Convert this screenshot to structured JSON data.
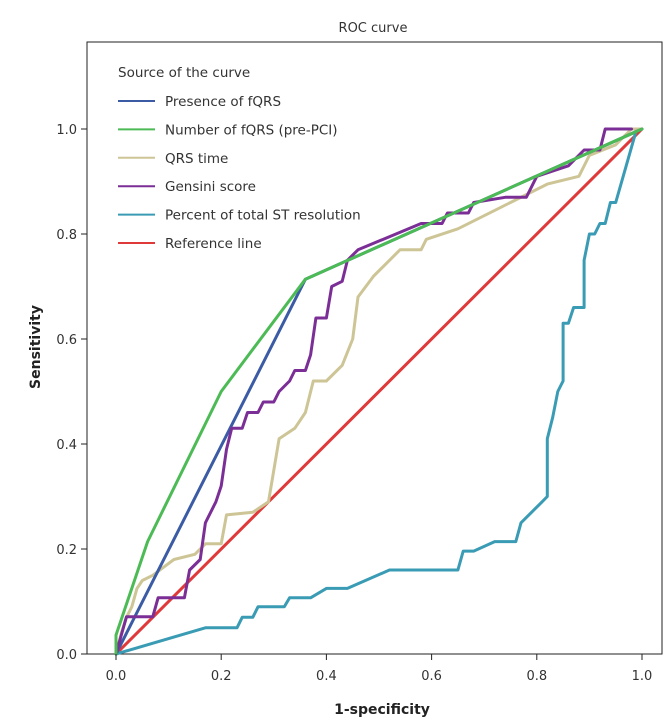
{
  "chart_data": {
    "type": "line",
    "title": "ROC curve",
    "xlabel": "1-specificity",
    "ylabel": "Sensitivity",
    "xlim": [
      0.0,
      1.0
    ],
    "ylim": [
      0.0,
      1.0
    ],
    "x_ticks": [
      "0.0",
      "0.2",
      "0.4",
      "0.6",
      "0.8",
      "1.0"
    ],
    "y_ticks": [
      "0.0",
      "0.2",
      "0.4",
      "0.6",
      "0.8",
      "1.0"
    ],
    "grid": false,
    "legend": {
      "title": "Source of the curve",
      "placement": "top-left"
    },
    "series": [
      {
        "name": "Presence of fQRS",
        "color": "#3b5ba5",
        "points": [
          [
            0,
            0
          ],
          [
            0.36,
            0.714
          ],
          [
            1,
            1
          ]
        ]
      },
      {
        "name": "Number of fQRS (pre-PCI)",
        "color": "#4cbb55",
        "points": [
          [
            0,
            0
          ],
          [
            0,
            0.036
          ],
          [
            0.06,
            0.214
          ],
          [
            0.2,
            0.5
          ],
          [
            0.36,
            0.714
          ],
          [
            1,
            1
          ]
        ]
      },
      {
        "name": "QRS time",
        "color": "#cdc596",
        "points": [
          [
            0,
            0
          ],
          [
            0.01,
            0.04
          ],
          [
            0.02,
            0.07
          ],
          [
            0.03,
            0.09
          ],
          [
            0.04,
            0.125
          ],
          [
            0.05,
            0.14
          ],
          [
            0.07,
            0.15
          ],
          [
            0.09,
            0.165
          ],
          [
            0.11,
            0.18
          ],
          [
            0.15,
            0.19
          ],
          [
            0.17,
            0.21
          ],
          [
            0.2,
            0.21
          ],
          [
            0.21,
            0.265
          ],
          [
            0.26,
            0.27
          ],
          [
            0.29,
            0.29
          ],
          [
            0.31,
            0.41
          ],
          [
            0.34,
            0.43
          ],
          [
            0.36,
            0.46
          ],
          [
            0.375,
            0.52
          ],
          [
            0.4,
            0.52
          ],
          [
            0.43,
            0.55
          ],
          [
            0.45,
            0.6
          ],
          [
            0.46,
            0.68
          ],
          [
            0.49,
            0.72
          ],
          [
            0.52,
            0.75
          ],
          [
            0.54,
            0.77
          ],
          [
            0.58,
            0.77
          ],
          [
            0.59,
            0.79
          ],
          [
            0.65,
            0.81
          ],
          [
            0.75,
            0.86
          ],
          [
            0.82,
            0.895
          ],
          [
            0.88,
            0.91
          ],
          [
            0.9,
            0.95
          ],
          [
            0.95,
            0.97
          ],
          [
            0.98,
            1
          ],
          [
            1,
            1
          ]
        ]
      },
      {
        "name": "Gensini score",
        "color": "#7b2f96",
        "points": [
          [
            0,
            0
          ],
          [
            0.01,
            0.036
          ],
          [
            0.02,
            0.071
          ],
          [
            0.07,
            0.071
          ],
          [
            0.08,
            0.107
          ],
          [
            0.13,
            0.107
          ],
          [
            0.14,
            0.16
          ],
          [
            0.16,
            0.18
          ],
          [
            0.17,
            0.25
          ],
          [
            0.19,
            0.29
          ],
          [
            0.2,
            0.32
          ],
          [
            0.21,
            0.39
          ],
          [
            0.22,
            0.43
          ],
          [
            0.24,
            0.43
          ],
          [
            0.25,
            0.46
          ],
          [
            0.26,
            0.46
          ],
          [
            0.27,
            0.46
          ],
          [
            0.28,
            0.48
          ],
          [
            0.3,
            0.48
          ],
          [
            0.31,
            0.5
          ],
          [
            0.33,
            0.52
          ],
          [
            0.34,
            0.54
          ],
          [
            0.36,
            0.54
          ],
          [
            0.37,
            0.57
          ],
          [
            0.38,
            0.64
          ],
          [
            0.4,
            0.64
          ],
          [
            0.41,
            0.7
          ],
          [
            0.43,
            0.71
          ],
          [
            0.44,
            0.75
          ],
          [
            0.46,
            0.77
          ],
          [
            0.58,
            0.82
          ],
          [
            0.62,
            0.82
          ],
          [
            0.63,
            0.84
          ],
          [
            0.67,
            0.84
          ],
          [
            0.68,
            0.86
          ],
          [
            0.74,
            0.87
          ],
          [
            0.78,
            0.87
          ],
          [
            0.8,
            0.91
          ],
          [
            0.86,
            0.93
          ],
          [
            0.89,
            0.96
          ],
          [
            0.92,
            0.96
          ],
          [
            0.93,
            1
          ],
          [
            0.98,
            1
          ]
        ]
      },
      {
        "name": "Percent of total ST resolution",
        "color": "#3a9bb4",
        "points": [
          [
            0,
            0
          ],
          [
            0.17,
            0.05
          ],
          [
            0.23,
            0.05
          ],
          [
            0.24,
            0.07
          ],
          [
            0.26,
            0.07
          ],
          [
            0.27,
            0.09
          ],
          [
            0.32,
            0.09
          ],
          [
            0.33,
            0.107
          ],
          [
            0.37,
            0.107
          ],
          [
            0.4,
            0.125
          ],
          [
            0.44,
            0.125
          ],
          [
            0.52,
            0.16
          ],
          [
            0.65,
            0.16
          ],
          [
            0.66,
            0.196
          ],
          [
            0.68,
            0.196
          ],
          [
            0.72,
            0.214
          ],
          [
            0.76,
            0.214
          ],
          [
            0.77,
            0.25
          ],
          [
            0.81,
            0.29
          ],
          [
            0.82,
            0.3
          ],
          [
            0.82,
            0.41
          ],
          [
            0.83,
            0.45
          ],
          [
            0.84,
            0.5
          ],
          [
            0.85,
            0.52
          ],
          [
            0.85,
            0.63
          ],
          [
            0.86,
            0.63
          ],
          [
            0.87,
            0.66
          ],
          [
            0.89,
            0.66
          ],
          [
            0.89,
            0.75
          ],
          [
            0.9,
            0.8
          ],
          [
            0.91,
            0.8
          ],
          [
            0.92,
            0.82
          ],
          [
            0.93,
            0.82
          ],
          [
            0.94,
            0.86
          ],
          [
            0.95,
            0.86
          ],
          [
            0.97,
            0.93
          ],
          [
            0.99,
            1
          ]
        ]
      },
      {
        "name": "Reference line",
        "color": "#e0393a",
        "points": [
          [
            0,
            0
          ],
          [
            1,
            1
          ]
        ]
      }
    ]
  }
}
